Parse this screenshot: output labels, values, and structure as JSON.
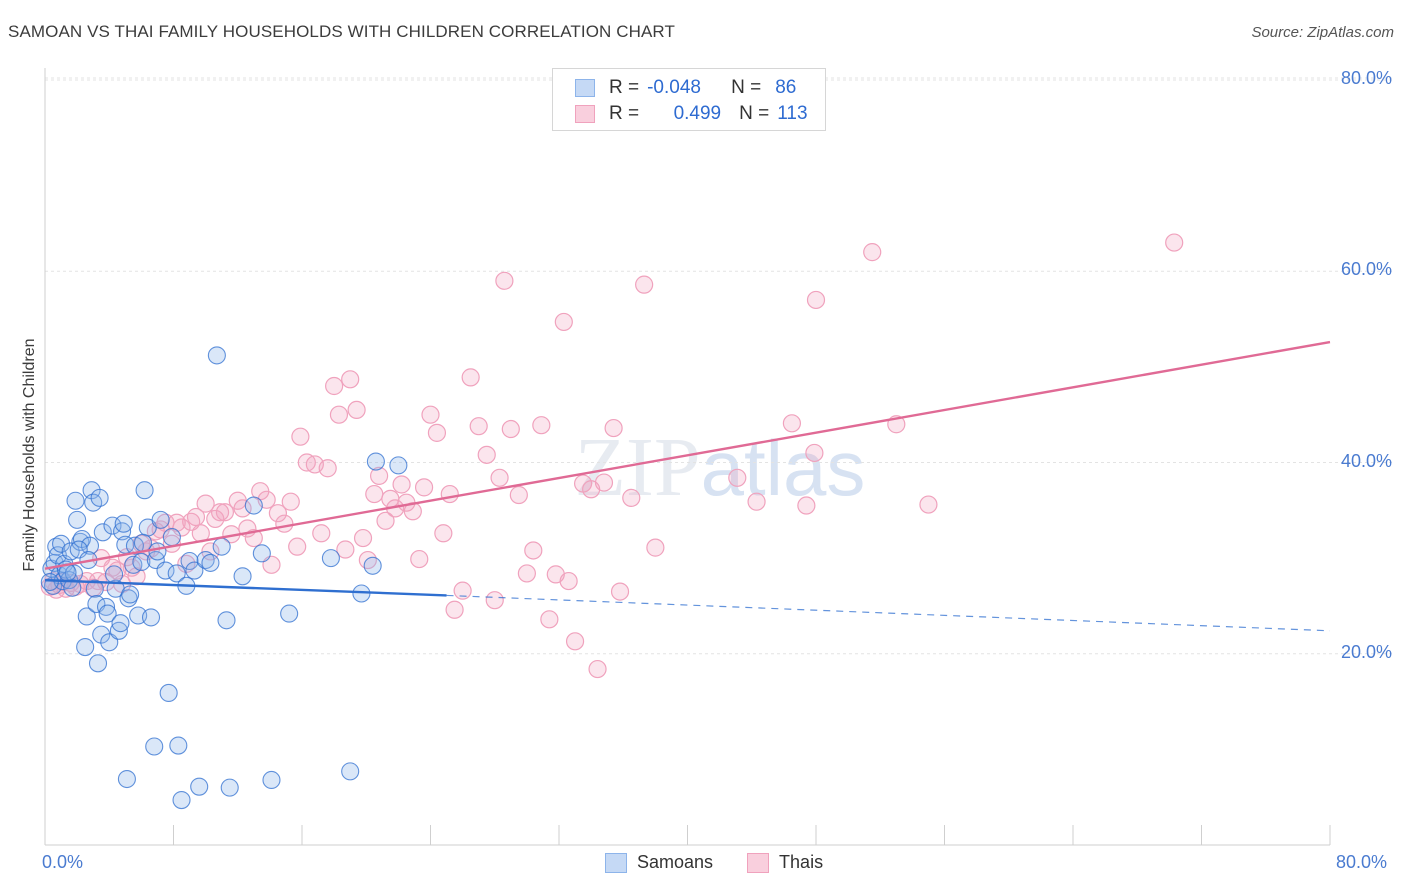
{
  "title": "SAMOAN VS THAI FAMILY HOUSEHOLDS WITH CHILDREN CORRELATION CHART",
  "source": "Source: ZipAtlas.com",
  "watermark": "ZIPatlas",
  "colors": {
    "samoans": "#8db4ea",
    "samoans_line": "#2f6fd0",
    "thais": "#f0a2bd",
    "thais_line": "#e06a95",
    "axis_text": "#4a7bd0"
  },
  "legend": {
    "rows": [
      {
        "r_label": "R =",
        "r_value": "-0.048",
        "n_label": "N =",
        "n_value": "86"
      },
      {
        "r_label": "R =",
        "r_value": "0.499",
        "n_label": "N =",
        "n_value": "113"
      }
    ]
  },
  "bottom_legend": {
    "samoans": "Samoans",
    "thais": "Thais"
  },
  "chart_data": {
    "type": "scatter",
    "title": "SAMOAN VS THAI FAMILY HOUSEHOLDS WITH CHILDREN CORRELATION CHART",
    "xlabel": "",
    "ylabel": "Family Households with Children",
    "xlim": [
      0,
      80
    ],
    "ylim": [
      0,
      80
    ],
    "x_tick_labels": [
      "0.0%",
      "80.0%"
    ],
    "y_tick_labels": [
      "20.0%",
      "40.0%",
      "60.0%",
      "80.0%"
    ],
    "y_ticks": [
      20,
      40,
      60,
      80
    ],
    "grid": true,
    "legend_position": "top-center",
    "series": [
      {
        "name": "Samoans",
        "r": -0.048,
        "n": 86,
        "trend": {
          "x": [
            0,
            25
          ],
          "y": [
            27.7,
            26.1
          ],
          "dashed_to": [
            80,
            22.4
          ]
        },
        "points": [
          [
            0.4,
            28.9
          ],
          [
            0.5,
            27.1
          ],
          [
            0.6,
            29.5
          ],
          [
            0.7,
            31.2
          ],
          [
            0.8,
            30.3
          ],
          [
            0.9,
            28.2
          ],
          [
            1.0,
            31.5
          ],
          [
            1.1,
            27.6
          ],
          [
            1.2,
            29.4
          ],
          [
            1.3,
            28.8
          ],
          [
            1.5,
            27.7
          ],
          [
            1.6,
            30.7
          ],
          [
            1.7,
            26.9
          ],
          [
            1.8,
            28.4
          ],
          [
            1.9,
            36.0
          ],
          [
            2.0,
            34.0
          ],
          [
            2.2,
            31.7
          ],
          [
            2.3,
            32.0
          ],
          [
            2.5,
            20.7
          ],
          [
            2.6,
            23.9
          ],
          [
            2.8,
            31.3
          ],
          [
            2.9,
            37.1
          ],
          [
            3.0,
            35.8
          ],
          [
            3.1,
            26.8
          ],
          [
            3.2,
            25.2
          ],
          [
            3.3,
            19.0
          ],
          [
            3.4,
            36.3
          ],
          [
            3.5,
            22.0
          ],
          [
            3.6,
            32.7
          ],
          [
            3.8,
            24.9
          ],
          [
            3.9,
            24.2
          ],
          [
            4.0,
            21.2
          ],
          [
            4.2,
            33.4
          ],
          [
            4.4,
            26.8
          ],
          [
            4.6,
            22.4
          ],
          [
            4.7,
            23.2
          ],
          [
            4.8,
            32.8
          ],
          [
            4.9,
            33.6
          ],
          [
            5.0,
            31.4
          ],
          [
            5.1,
            6.9
          ],
          [
            5.2,
            25.8
          ],
          [
            5.3,
            26.2
          ],
          [
            5.5,
            29.3
          ],
          [
            5.6,
            31.3
          ],
          [
            5.8,
            24.0
          ],
          [
            6.0,
            29.6
          ],
          [
            6.2,
            37.1
          ],
          [
            6.4,
            33.2
          ],
          [
            6.6,
            23.8
          ],
          [
            6.8,
            10.3
          ],
          [
            6.9,
            29.8
          ],
          [
            7.0,
            30.7
          ],
          [
            7.2,
            34.0
          ],
          [
            7.5,
            28.7
          ],
          [
            7.7,
            15.9
          ],
          [
            7.9,
            32.2
          ],
          [
            8.2,
            28.4
          ],
          [
            8.3,
            10.4
          ],
          [
            8.5,
            4.7
          ],
          [
            8.8,
            27.1
          ],
          [
            9.0,
            29.7
          ],
          [
            9.3,
            28.7
          ],
          [
            9.6,
            6.1
          ],
          [
            10.0,
            29.8
          ],
          [
            10.3,
            29.5
          ],
          [
            10.7,
            51.2
          ],
          [
            11.0,
            31.2
          ],
          [
            11.3,
            23.5
          ],
          [
            11.5,
            6.0
          ],
          [
            12.3,
            28.1
          ],
          [
            13.0,
            35.5
          ],
          [
            13.5,
            30.5
          ],
          [
            14.1,
            6.8
          ],
          [
            15.2,
            24.2
          ],
          [
            17.8,
            30.0
          ],
          [
            19.0,
            7.7
          ],
          [
            19.7,
            26.3
          ],
          [
            20.4,
            29.2
          ],
          [
            20.6,
            40.1
          ],
          [
            22.0,
            39.7
          ],
          [
            1.4,
            28.5
          ],
          [
            2.1,
            30.9
          ],
          [
            2.7,
            29.8
          ],
          [
            0.3,
            27.5
          ],
          [
            4.3,
            28.3
          ],
          [
            6.1,
            31.6
          ]
        ]
      },
      {
        "name": "Thais",
        "r": 0.499,
        "n": 113,
        "trend": {
          "x": [
            0,
            80
          ],
          "y": [
            28.9,
            52.6
          ]
        },
        "points": [
          [
            0.3,
            27.0
          ],
          [
            0.5,
            27.6
          ],
          [
            0.7,
            26.7
          ],
          [
            0.9,
            27.2
          ],
          [
            1.1,
            27.5
          ],
          [
            1.3,
            26.8
          ],
          [
            1.6,
            27.4
          ],
          [
            1.9,
            27.0
          ],
          [
            2.2,
            27.3
          ],
          [
            2.6,
            27.6
          ],
          [
            3.0,
            26.9
          ],
          [
            3.3,
            27.6
          ],
          [
            3.5,
            30.0
          ],
          [
            3.8,
            27.5
          ],
          [
            4.2,
            29.0
          ],
          [
            4.5,
            28.7
          ],
          [
            4.8,
            27.3
          ],
          [
            5.1,
            30.1
          ],
          [
            5.4,
            29.0
          ],
          [
            5.7,
            28.1
          ],
          [
            6.0,
            31.5
          ],
          [
            6.3,
            30.7
          ],
          [
            6.6,
            31.0
          ],
          [
            6.9,
            32.8
          ],
          [
            7.2,
            33.0
          ],
          [
            7.5,
            33.7
          ],
          [
            7.9,
            31.5
          ],
          [
            8.2,
            33.7
          ],
          [
            8.5,
            33.2
          ],
          [
            8.8,
            29.4
          ],
          [
            9.1,
            33.8
          ],
          [
            9.4,
            34.3
          ],
          [
            9.7,
            32.6
          ],
          [
            10.0,
            35.7
          ],
          [
            10.3,
            30.7
          ],
          [
            10.6,
            34.1
          ],
          [
            10.9,
            34.8
          ],
          [
            11.2,
            34.8
          ],
          [
            11.6,
            32.5
          ],
          [
            12.0,
            36.0
          ],
          [
            12.3,
            35.2
          ],
          [
            12.6,
            33.1
          ],
          [
            13.0,
            32.1
          ],
          [
            13.4,
            37.0
          ],
          [
            13.8,
            36.1
          ],
          [
            14.1,
            29.3
          ],
          [
            14.5,
            34.7
          ],
          [
            14.9,
            33.6
          ],
          [
            15.3,
            35.9
          ],
          [
            15.7,
            31.2
          ],
          [
            15.9,
            42.7
          ],
          [
            16.3,
            40.0
          ],
          [
            16.8,
            39.8
          ],
          [
            17.2,
            32.6
          ],
          [
            17.6,
            39.4
          ],
          [
            18.0,
            48.0
          ],
          [
            18.3,
            45.0
          ],
          [
            18.7,
            30.9
          ],
          [
            19.0,
            48.7
          ],
          [
            19.4,
            45.5
          ],
          [
            19.8,
            32.1
          ],
          [
            20.1,
            29.8
          ],
          [
            20.5,
            36.7
          ],
          [
            20.8,
            38.6
          ],
          [
            21.2,
            33.9
          ],
          [
            21.5,
            36.2
          ],
          [
            21.8,
            35.2
          ],
          [
            22.2,
            37.7
          ],
          [
            22.5,
            35.8
          ],
          [
            22.9,
            34.9
          ],
          [
            23.3,
            29.9
          ],
          [
            23.6,
            37.4
          ],
          [
            24.0,
            45.0
          ],
          [
            24.4,
            43.1
          ],
          [
            24.8,
            32.6
          ],
          [
            25.2,
            36.7
          ],
          [
            25.5,
            24.6
          ],
          [
            26.0,
            26.6
          ],
          [
            26.5,
            48.9
          ],
          [
            27.0,
            43.8
          ],
          [
            27.5,
            40.8
          ],
          [
            28.0,
            25.6
          ],
          [
            28.3,
            38.4
          ],
          [
            28.6,
            59.0
          ],
          [
            29.0,
            43.5
          ],
          [
            29.5,
            36.6
          ],
          [
            30.0,
            28.4
          ],
          [
            30.4,
            30.8
          ],
          [
            30.9,
            43.9
          ],
          [
            31.4,
            23.6
          ],
          [
            31.8,
            28.3
          ],
          [
            32.3,
            54.7
          ],
          [
            32.6,
            27.6
          ],
          [
            33.0,
            21.3
          ],
          [
            33.5,
            37.8
          ],
          [
            34.0,
            37.2
          ],
          [
            34.4,
            18.4
          ],
          [
            34.8,
            37.9
          ],
          [
            35.4,
            43.6
          ],
          [
            35.8,
            26.5
          ],
          [
            36.5,
            36.3
          ],
          [
            37.3,
            58.6
          ],
          [
            38.0,
            31.1
          ],
          [
            43.1,
            38.4
          ],
          [
            44.3,
            35.9
          ],
          [
            46.5,
            44.1
          ],
          [
            47.4,
            35.5
          ],
          [
            47.9,
            41.0
          ],
          [
            48.0,
            57.0
          ],
          [
            51.5,
            62.0
          ],
          [
            53.0,
            44.0
          ],
          [
            55.0,
            35.6
          ],
          [
            70.3,
            63.0
          ]
        ]
      }
    ]
  }
}
